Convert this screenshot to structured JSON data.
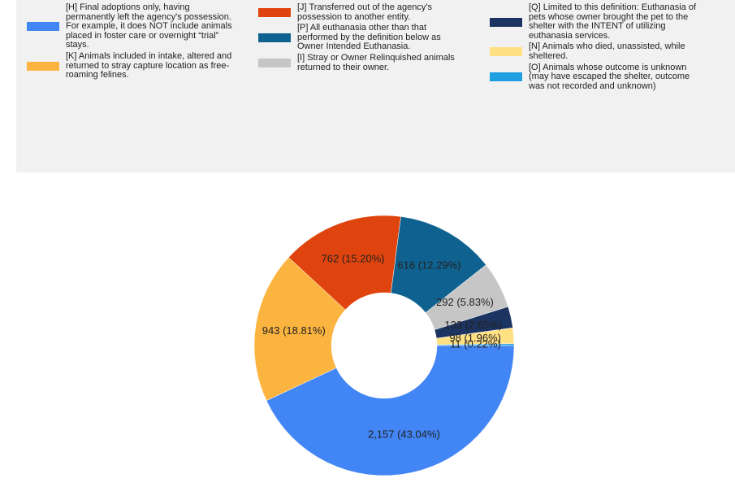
{
  "chart_data": {
    "type": "pie",
    "categories": [
      "[H] Final adoptions only, having permanently left the agency's possession. For example, it does NOT include animals placed in foster care or overnight “trial” stays.",
      "[K] Animals included in intake, altered and returned to stray capture location as free-roaming felines.",
      "[J] Transferred out of the agency's possession to another entity.",
      "[P] All euthanasia other than that performed by the definition below as Owner Intended Euthanasia.",
      "[I] Stray or Owner Relinquished animals returned to their owner.",
      "[Q] Limited to this definition: Euthanasia of pets whose owner brought the pet to the shelter with the INTENT of utilizing euthanasia services.",
      "[N] Animals who died, unassisted, while sheltered.",
      "[O] Animals whose outcome is unknown (may have escaped the shelter, outcome was not recorded and unknown)"
    ],
    "values": [
      2157,
      943,
      762,
      616,
      292,
      133,
      98,
      11
    ],
    "value_labels": [
      "2,157 (43.04%)",
      "943 (18.81%)",
      "762 (15.20%)",
      "616 (12.29%)",
      "292 (5.83%)",
      "133 (2.65%)",
      "98 (1.96%)",
      "11 (0.22%)"
    ],
    "colors": [
      "#4285f4",
      "#fbb440",
      "#e0440e",
      "#0f6290",
      "#c6c6c6",
      "#1c3461",
      "#ffe083",
      "#1e9fe0"
    ]
  }
}
